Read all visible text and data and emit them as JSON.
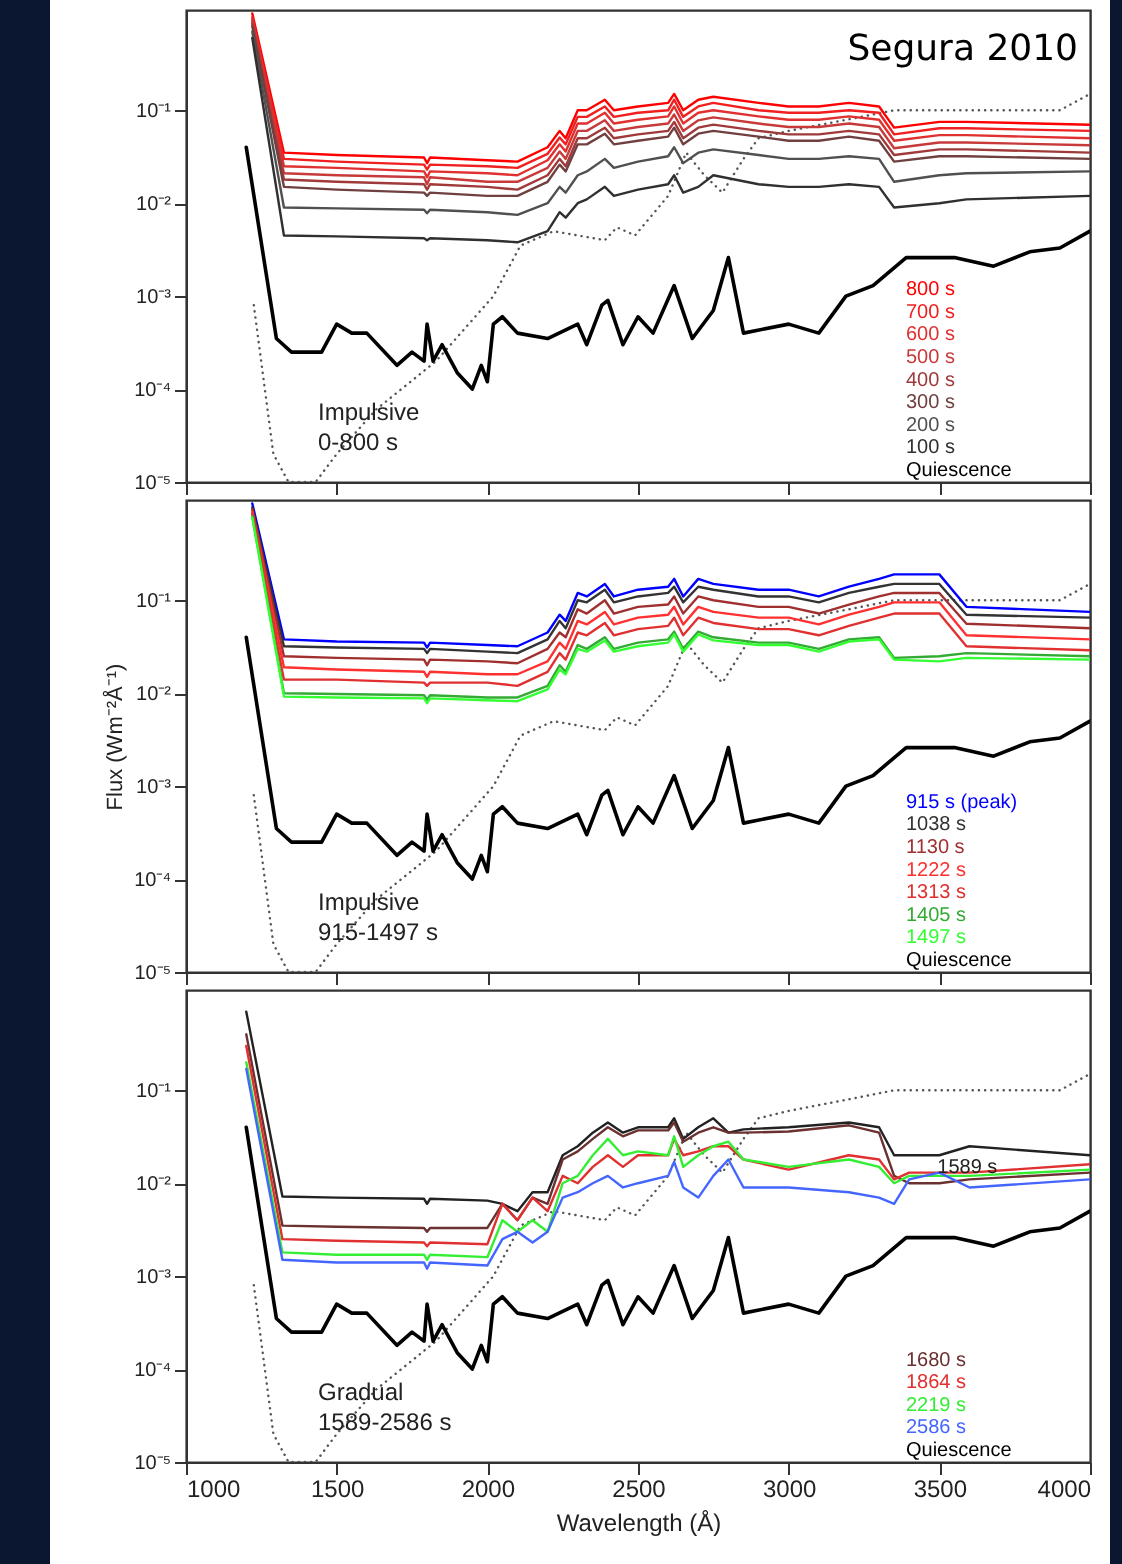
{
  "chart_data": [
    {
      "type": "line",
      "legend": "bottom right",
      "tick_labels": "y",
      "log": true,
      "xlim": [
        1000,
        4000
      ],
      "xticks": [
        1000,
        1500,
        2000,
        2500,
        3000,
        3500,
        4000
      ],
      "ylim": [
        1e-05,
        1.2
      ],
      "yticks": [
        {
          "value": 1e-05,
          "label": "10⁻⁵"
        },
        {
          "value": 0.0001,
          "label": "10⁻⁴"
        },
        {
          "value": 0.001,
          "label": "10⁻³"
        },
        {
          "value": 0.01,
          "label": "10⁻²"
        },
        {
          "value": 0.1,
          "label": "10⁻¹"
        }
      ],
      "annotations": [
        "Segura 2010",
        "Impulsive\n0-800 s"
      ],
      "x": [
        1220,
        1325,
        1500,
        1790,
        1800,
        1810,
        2000,
        2100,
        2200,
        2240,
        2260,
        2300,
        2330,
        2390,
        2420,
        2500,
        2600,
        2620,
        2650,
        2700,
        2750,
        2900,
        3000,
        3100,
        3200,
        3300,
        3350,
        3500,
        3590,
        4000
      ],
      "series": [
        {
          "color": "#555555",
          "line_style": "dotted",
          "x": [
            1225,
            1290,
            1340,
            1430,
            1500,
            1630,
            1830,
            2020,
            2110,
            2220,
            2300,
            2390,
            2430,
            2490,
            2600,
            2660,
            2720,
            2780,
            2850,
            2900,
            3000,
            3200,
            3350,
            3900,
            4000
          ],
          "values": [
            0.0008,
            2e-05,
            1e-05,
            1e-05,
            2e-05,
            6e-05,
            0.0002,
            0.001,
            0.0035,
            0.005,
            0.0045,
            0.004,
            0.0055,
            0.0045,
            0.012,
            0.035,
            0.02,
            0.013,
            0.03,
            0.05,
            0.06,
            0.08,
            0.1,
            0.1,
            0.15
          ]
        },
        {
          "name": "800 s",
          "color": "#ff0000",
          "values": [
            1.1,
            0.035,
            0.033,
            0.031,
            0.027,
            0.031,
            0.029,
            0.028,
            0.04,
            0.06,
            0.05,
            0.1,
            0.1,
            0.13,
            0.1,
            0.11,
            0.12,
            0.15,
            0.1,
            0.13,
            0.14,
            0.12,
            0.11,
            0.11,
            0.12,
            0.11,
            0.065,
            0.075,
            0.075,
            0.07
          ]
        },
        {
          "name": "700 s",
          "color": "#f02020",
          "values": [
            1.0,
            0.03,
            0.028,
            0.026,
            0.023,
            0.026,
            0.025,
            0.024,
            0.034,
            0.051,
            0.043,
            0.085,
            0.085,
            0.11,
            0.085,
            0.094,
            0.1,
            0.13,
            0.085,
            0.11,
            0.12,
            0.1,
            0.094,
            0.094,
            0.1,
            0.094,
            0.055,
            0.064,
            0.064,
            0.06
          ]
        },
        {
          "name": "600 s",
          "color": "#e03030",
          "values": [
            0.95,
            0.025,
            0.024,
            0.022,
            0.019,
            0.022,
            0.021,
            0.02,
            0.029,
            0.043,
            0.036,
            0.072,
            0.072,
            0.094,
            0.072,
            0.079,
            0.086,
            0.11,
            0.072,
            0.094,
            0.1,
            0.086,
            0.079,
            0.079,
            0.086,
            0.079,
            0.047,
            0.054,
            0.054,
            0.05
          ]
        },
        {
          "name": "500 s",
          "color": "#c83a3a",
          "values": [
            0.9,
            0.021,
            0.02,
            0.019,
            0.016,
            0.019,
            0.017,
            0.017,
            0.024,
            0.036,
            0.03,
            0.06,
            0.06,
            0.078,
            0.06,
            0.066,
            0.072,
            0.09,
            0.06,
            0.078,
            0.084,
            0.072,
            0.066,
            0.066,
            0.072,
            0.066,
            0.039,
            0.045,
            0.045,
            0.042
          ]
        },
        {
          "name": "400 s",
          "color": "#a03a3a",
          "values": [
            0.85,
            0.018,
            0.017,
            0.016,
            0.014,
            0.016,
            0.015,
            0.014,
            0.02,
            0.03,
            0.025,
            0.05,
            0.05,
            0.065,
            0.05,
            0.055,
            0.06,
            0.075,
            0.05,
            0.065,
            0.07,
            0.06,
            0.055,
            0.055,
            0.06,
            0.055,
            0.033,
            0.038,
            0.038,
            0.035
          ]
        },
        {
          "name": "300 s",
          "color": "#704040",
          "values": [
            0.8,
            0.015,
            0.014,
            0.013,
            0.012,
            0.013,
            0.012,
            0.012,
            0.017,
            0.026,
            0.022,
            0.043,
            0.043,
            0.056,
            0.043,
            0.047,
            0.052,
            0.065,
            0.043,
            0.056,
            0.06,
            0.052,
            0.047,
            0.047,
            0.052,
            0.047,
            0.028,
            0.032,
            0.032,
            0.03
          ]
        },
        {
          "name": "200 s",
          "color": "#505050",
          "values": [
            0.7,
            0.009,
            0.0088,
            0.0085,
            0.0078,
            0.0085,
            0.008,
            0.0075,
            0.01,
            0.015,
            0.013,
            0.02,
            0.022,
            0.03,
            0.024,
            0.028,
            0.032,
            0.04,
            0.027,
            0.035,
            0.038,
            0.033,
            0.03,
            0.03,
            0.032,
            0.03,
            0.017,
            0.02,
            0.021,
            0.022
          ]
        },
        {
          "name": "100 s",
          "color": "#303030",
          "values": [
            0.6,
            0.0045,
            0.0044,
            0.0042,
            0.004,
            0.0042,
            0.004,
            0.0038,
            0.005,
            0.008,
            0.007,
            0.01,
            0.011,
            0.015,
            0.012,
            0.014,
            0.016,
            0.02,
            0.013,
            0.015,
            0.02,
            0.016,
            0.015,
            0.015,
            0.016,
            0.015,
            0.009,
            0.01,
            0.011,
            0.012
          ]
        },
        {
          "name": "Quiescence",
          "color": "#000000",
          "x": [
            1200,
            1300,
            1350,
            1450,
            1500,
            1550,
            1600,
            1700,
            1750,
            1790,
            1800,
            1820,
            1850,
            1900,
            1950,
            1980,
            2000,
            2020,
            2050,
            2100,
            2200,
            2300,
            2330,
            2380,
            2400,
            2450,
            2500,
            2550,
            2620,
            2680,
            2750,
            2800,
            2850,
            3000,
            3100,
            3190,
            3280,
            3390,
            3550,
            3680,
            3800,
            3900,
            4000
          ],
          "values": [
            0.04,
            0.00035,
            0.00025,
            0.00025,
            0.0005,
            0.0004,
            0.0004,
            0.00018,
            0.00025,
            0.0002,
            0.0005,
            0.0002,
            0.0003,
            0.00015,
            0.0001,
            0.00018,
            0.00012,
            0.0005,
            0.0006,
            0.0004,
            0.00035,
            0.0005,
            0.0003,
            0.0008,
            0.0009,
            0.0003,
            0.0006,
            0.0004,
            0.0013,
            0.00035,
            0.0007,
            0.0026,
            0.0004,
            0.0005,
            0.0004,
            0.001,
            0.0013,
            0.0026,
            0.0026,
            0.0021,
            0.003,
            0.0033,
            0.005
          ]
        }
      ]
    },
    {
      "type": "line",
      "legend": "bottom right",
      "tick_labels": "y",
      "log": true,
      "ylabel": "Flux (Wm⁻²Å⁻¹)",
      "xlim": [
        1000,
        4000
      ],
      "xticks": [
        1000,
        1500,
        2000,
        2500,
        3000,
        3500,
        4000
      ],
      "ylim": [
        1e-05,
        1.2
      ],
      "yticks": [
        {
          "value": 1e-05,
          "label": "10⁻⁵"
        },
        {
          "value": 0.0001,
          "label": "10⁻⁴"
        },
        {
          "value": 0.001,
          "label": "10⁻³"
        },
        {
          "value": 0.01,
          "label": "10⁻²"
        },
        {
          "value": 0.1,
          "label": "10⁻¹"
        }
      ],
      "annotations": [
        "Impulsive\n915-1497 s"
      ],
      "x": [
        1220,
        1325,
        1500,
        1790,
        1800,
        1810,
        2000,
        2100,
        2200,
        2240,
        2260,
        2300,
        2330,
        2390,
        2420,
        2500,
        2600,
        2620,
        2650,
        2700,
        2750,
        2900,
        3000,
        3100,
        3200,
        3300,
        3350,
        3500,
        3590,
        4000
      ],
      "series": [
        {
          "color": "#555555",
          "line_style": "dotted",
          "x": [
            1225,
            1290,
            1340,
            1430,
            1500,
            1630,
            1830,
            2020,
            2110,
            2220,
            2300,
            2390,
            2430,
            2490,
            2600,
            2660,
            2720,
            2780,
            2850,
            2900,
            3000,
            3200,
            3350,
            3900,
            4000
          ],
          "values": [
            0.0008,
            2e-05,
            1e-05,
            1e-05,
            2e-05,
            6e-05,
            0.0002,
            0.001,
            0.0035,
            0.005,
            0.0045,
            0.004,
            0.0055,
            0.0045,
            0.012,
            0.035,
            0.02,
            0.013,
            0.03,
            0.05,
            0.06,
            0.08,
            0.1,
            0.1,
            0.15
          ]
        },
        {
          "name": "915 s (peak)",
          "color": "#0000ff",
          "values": [
            1.1,
            0.038,
            0.036,
            0.035,
            0.031,
            0.035,
            0.033,
            0.032,
            0.045,
            0.07,
            0.06,
            0.12,
            0.11,
            0.15,
            0.11,
            0.13,
            0.14,
            0.17,
            0.11,
            0.17,
            0.15,
            0.13,
            0.13,
            0.11,
            0.14,
            0.17,
            0.19,
            0.19,
            0.085,
            0.075
          ]
        },
        {
          "name": "1038 s",
          "color": "#333333",
          "values": [
            1.0,
            0.032,
            0.031,
            0.03,
            0.027,
            0.03,
            0.028,
            0.027,
            0.038,
            0.06,
            0.05,
            0.1,
            0.095,
            0.13,
            0.095,
            0.11,
            0.12,
            0.14,
            0.095,
            0.14,
            0.13,
            0.11,
            0.11,
            0.095,
            0.12,
            0.14,
            0.15,
            0.15,
            0.07,
            0.065
          ]
        },
        {
          "name": "1130 s",
          "color": "#a03030",
          "values": [
            0.95,
            0.025,
            0.024,
            0.023,
            0.02,
            0.023,
            0.022,
            0.021,
            0.03,
            0.045,
            0.04,
            0.08,
            0.072,
            0.1,
            0.072,
            0.085,
            0.09,
            0.11,
            0.072,
            0.11,
            0.1,
            0.085,
            0.085,
            0.072,
            0.09,
            0.11,
            0.12,
            0.12,
            0.056,
            0.05
          ]
        },
        {
          "name": "1222 s",
          "color": "#ff3030",
          "values": [
            0.9,
            0.019,
            0.018,
            0.017,
            0.015,
            0.017,
            0.016,
            0.016,
            0.022,
            0.035,
            0.03,
            0.06,
            0.055,
            0.075,
            0.055,
            0.065,
            0.07,
            0.085,
            0.055,
            0.085,
            0.075,
            0.065,
            0.065,
            0.055,
            0.07,
            0.085,
            0.095,
            0.095,
            0.042,
            0.038
          ]
        },
        {
          "name": "1313 s",
          "color": "#e03030",
          "values": [
            0.85,
            0.014,
            0.014,
            0.013,
            0.012,
            0.013,
            0.013,
            0.012,
            0.017,
            0.027,
            0.023,
            0.045,
            0.042,
            0.057,
            0.042,
            0.049,
            0.053,
            0.065,
            0.042,
            0.065,
            0.057,
            0.049,
            0.049,
            0.042,
            0.053,
            0.065,
            0.072,
            0.072,
            0.032,
            0.029
          ]
        },
        {
          "name": "1405 s",
          "color": "#33aa33",
          "values": [
            0.8,
            0.01,
            0.0098,
            0.0095,
            0.0085,
            0.0095,
            0.009,
            0.009,
            0.012,
            0.02,
            0.017,
            0.033,
            0.03,
            0.04,
            0.03,
            0.035,
            0.038,
            0.046,
            0.03,
            0.046,
            0.04,
            0.035,
            0.035,
            0.03,
            0.038,
            0.04,
            0.024,
            0.025,
            0.027,
            0.025
          ]
        },
        {
          "name": "1497 s",
          "color": "#33ff33",
          "values": [
            0.78,
            0.0092,
            0.009,
            0.0088,
            0.0078,
            0.0088,
            0.0084,
            0.0082,
            0.011,
            0.018,
            0.016,
            0.03,
            0.028,
            0.037,
            0.028,
            0.032,
            0.035,
            0.043,
            0.028,
            0.043,
            0.037,
            0.033,
            0.033,
            0.028,
            0.036,
            0.038,
            0.023,
            0.022,
            0.024,
            0.023
          ]
        },
        {
          "name": "Quiescence",
          "color": "#000000",
          "x": [
            1200,
            1300,
            1350,
            1450,
            1500,
            1550,
            1600,
            1700,
            1750,
            1790,
            1800,
            1820,
            1850,
            1900,
            1950,
            1980,
            2000,
            2020,
            2050,
            2100,
            2200,
            2300,
            2330,
            2380,
            2400,
            2450,
            2500,
            2550,
            2620,
            2680,
            2750,
            2800,
            2850,
            3000,
            3100,
            3190,
            3280,
            3390,
            3550,
            3680,
            3800,
            3900,
            4000
          ],
          "values": [
            0.04,
            0.00035,
            0.00025,
            0.00025,
            0.0005,
            0.0004,
            0.0004,
            0.00018,
            0.00025,
            0.0002,
            0.0005,
            0.0002,
            0.0003,
            0.00015,
            0.0001,
            0.00018,
            0.00012,
            0.0005,
            0.0006,
            0.0004,
            0.00035,
            0.0005,
            0.0003,
            0.0008,
            0.0009,
            0.0003,
            0.0006,
            0.0004,
            0.0013,
            0.00035,
            0.0007,
            0.0026,
            0.0004,
            0.0005,
            0.0004,
            0.001,
            0.0013,
            0.0026,
            0.0026,
            0.0021,
            0.003,
            0.0033,
            0.005
          ]
        }
      ]
    },
    {
      "type": "line",
      "legend": "bottom right",
      "log": true,
      "xlabel": "Wavelength (Å)",
      "xlim": [
        1000,
        4000
      ],
      "xticks": [
        1000,
        1500,
        2000,
        2500,
        3000,
        3500,
        4000
      ],
      "ylim": [
        1e-05,
        1.2
      ],
      "yticks": [
        {
          "value": 1e-05,
          "label": "10⁻⁵"
        },
        {
          "value": 0.0001,
          "label": "10⁻⁴"
        },
        {
          "value": 0.001,
          "label": "10⁻³"
        },
        {
          "value": 0.01,
          "label": "10⁻²"
        },
        {
          "value": 0.1,
          "label": "10⁻¹"
        }
      ],
      "annotations": [
        {
          "text": "1589 s",
          "x": 3480,
          "y": 0.015
        },
        "Gradual\n1589-2586 s"
      ],
      "x": [
        1200,
        1320,
        1500,
        1790,
        1800,
        1810,
        2000,
        2050,
        2100,
        2150,
        2200,
        2250,
        2300,
        2350,
        2400,
        2450,
        2500,
        2600,
        2620,
        2650,
        2700,
        2750,
        2800,
        2850,
        3000,
        3200,
        3300,
        3350,
        3400,
        3500,
        3600,
        4000
      ],
      "series": [
        {
          "color": "#555555",
          "line_style": "dotted",
          "x": [
            1225,
            1290,
            1340,
            1430,
            1500,
            1630,
            1830,
            2020,
            2110,
            2220,
            2300,
            2390,
            2430,
            2490,
            2600,
            2660,
            2720,
            2780,
            2850,
            2900,
            3000,
            3200,
            3350,
            3900,
            4000
          ],
          "values": [
            0.0008,
            2e-05,
            1e-05,
            1e-05,
            2e-05,
            6e-05,
            0.0002,
            0.001,
            0.0035,
            0.005,
            0.0045,
            0.004,
            0.0055,
            0.0045,
            0.012,
            0.035,
            0.02,
            0.013,
            0.03,
            0.05,
            0.06,
            0.08,
            0.1,
            0.1,
            0.15
          ]
        },
        {
          "color": "#222222",
          "values": [
            0.7,
            0.0072,
            0.007,
            0.0068,
            0.006,
            0.0068,
            0.0065,
            0.006,
            0.005,
            0.008,
            0.008,
            0.02,
            0.025,
            0.035,
            0.045,
            0.035,
            0.04,
            0.04,
            0.05,
            0.03,
            0.04,
            0.05,
            0.035,
            0.038,
            0.04,
            0.045,
            0.04,
            0.02,
            0.02,
            0.02,
            0.025,
            0.02
          ]
        },
        {
          "name": "1680 s",
          "color": "#6b3030",
          "values": [
            0.4,
            0.0035,
            0.0034,
            0.0033,
            0.003,
            0.0033,
            0.0033,
            0.006,
            0.004,
            0.007,
            0.006,
            0.018,
            0.022,
            0.03,
            0.04,
            0.032,
            0.037,
            0.037,
            0.045,
            0.028,
            0.035,
            0.04,
            0.035,
            0.035,
            0.036,
            0.042,
            0.035,
            0.012,
            0.01,
            0.01,
            0.011,
            0.013
          ]
        },
        {
          "name": "1864 s",
          "color": "#e03030",
          "values": [
            0.3,
            0.0025,
            0.0024,
            0.0023,
            0.0021,
            0.0023,
            0.0022,
            0.006,
            0.004,
            0.007,
            0.005,
            0.012,
            0.01,
            0.015,
            0.02,
            0.015,
            0.02,
            0.02,
            0.03,
            0.02,
            0.022,
            0.025,
            0.025,
            0.018,
            0.014,
            0.02,
            0.018,
            0.011,
            0.013,
            0.013,
            0.013,
            0.016
          ]
        },
        {
          "name": "2219 s",
          "color": "#33ee33",
          "values": [
            0.2,
            0.0018,
            0.0017,
            0.0017,
            0.0015,
            0.0017,
            0.0016,
            0.004,
            0.003,
            0.004,
            0.003,
            0.01,
            0.012,
            0.02,
            0.03,
            0.02,
            0.022,
            0.02,
            0.032,
            0.015,
            0.02,
            0.025,
            0.028,
            0.018,
            0.015,
            0.018,
            0.015,
            0.01,
            0.012,
            0.012,
            0.012,
            0.014
          ]
        },
        {
          "name": "2586 s",
          "color": "#4466ff",
          "values": [
            0.17,
            0.0015,
            0.0014,
            0.0014,
            0.0012,
            0.0014,
            0.0013,
            0.0025,
            0.003,
            0.0023,
            0.003,
            0.007,
            0.008,
            0.01,
            0.012,
            0.009,
            0.01,
            0.012,
            0.017,
            0.009,
            0.007,
            0.012,
            0.018,
            0.009,
            0.009,
            0.008,
            0.007,
            0.006,
            0.011,
            0.013,
            0.009,
            0.011
          ]
        },
        {
          "name": "Quiescence",
          "color": "#000000",
          "x": [
            1200,
            1300,
            1350,
            1450,
            1500,
            1550,
            1600,
            1700,
            1750,
            1790,
            1800,
            1820,
            1850,
            1900,
            1950,
            1980,
            2000,
            2020,
            2050,
            2100,
            2200,
            2300,
            2330,
            2380,
            2400,
            2450,
            2500,
            2550,
            2620,
            2680,
            2750,
            2800,
            2850,
            3000,
            3100,
            3190,
            3280,
            3390,
            3550,
            3680,
            3800,
            3900,
            4000
          ],
          "values": [
            0.04,
            0.00035,
            0.00025,
            0.00025,
            0.0005,
            0.0004,
            0.0004,
            0.00018,
            0.00025,
            0.0002,
            0.0005,
            0.0002,
            0.0003,
            0.00015,
            0.0001,
            0.00018,
            0.00012,
            0.0005,
            0.0006,
            0.0004,
            0.00035,
            0.0005,
            0.0003,
            0.0008,
            0.0009,
            0.0003,
            0.0006,
            0.0004,
            0.0013,
            0.00035,
            0.0007,
            0.0026,
            0.0004,
            0.0005,
            0.0004,
            0.001,
            0.0013,
            0.0026,
            0.0026,
            0.0021,
            0.003,
            0.0033,
            0.005
          ]
        }
      ]
    }
  ]
}
